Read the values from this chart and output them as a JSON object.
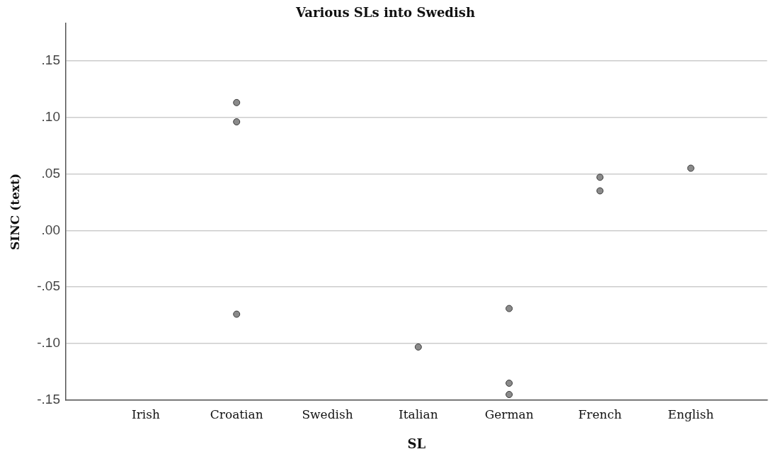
{
  "chart_data": {
    "type": "scatter",
    "title": "Various SLs into Swedish",
    "xlabel": "SL",
    "ylabel": "SINC (text)",
    "categories": [
      "Irish",
      "Croatian",
      "Swedish",
      "Italian",
      "German",
      "French",
      "English"
    ],
    "series": [
      {
        "color": "#8a8a8a",
        "x": [
          "Croatian",
          "Croatian",
          "Croatian",
          "Italian",
          "German",
          "German",
          "German",
          "French",
          "French",
          "English"
        ],
        "values": [
          0.113,
          0.096,
          -0.074,
          -0.103,
          -0.069,
          -0.135,
          -0.145,
          0.047,
          0.035,
          0.055
        ]
      }
    ],
    "ylim": [
      -0.15,
      0.183
    ],
    "yticks": [
      {
        "value": -0.15,
        "label": "-.15"
      },
      {
        "value": -0.1,
        "label": "-.10"
      },
      {
        "value": -0.05,
        "label": "-.05"
      },
      {
        "value": 0,
        "label": ".00"
      },
      {
        "value": 0.05,
        "label": ".05"
      },
      {
        "value": 0.1,
        "label": ".10"
      },
      {
        "value": 0.15,
        "label": ".15"
      }
    ],
    "grid": "y",
    "marker": "circle"
  }
}
